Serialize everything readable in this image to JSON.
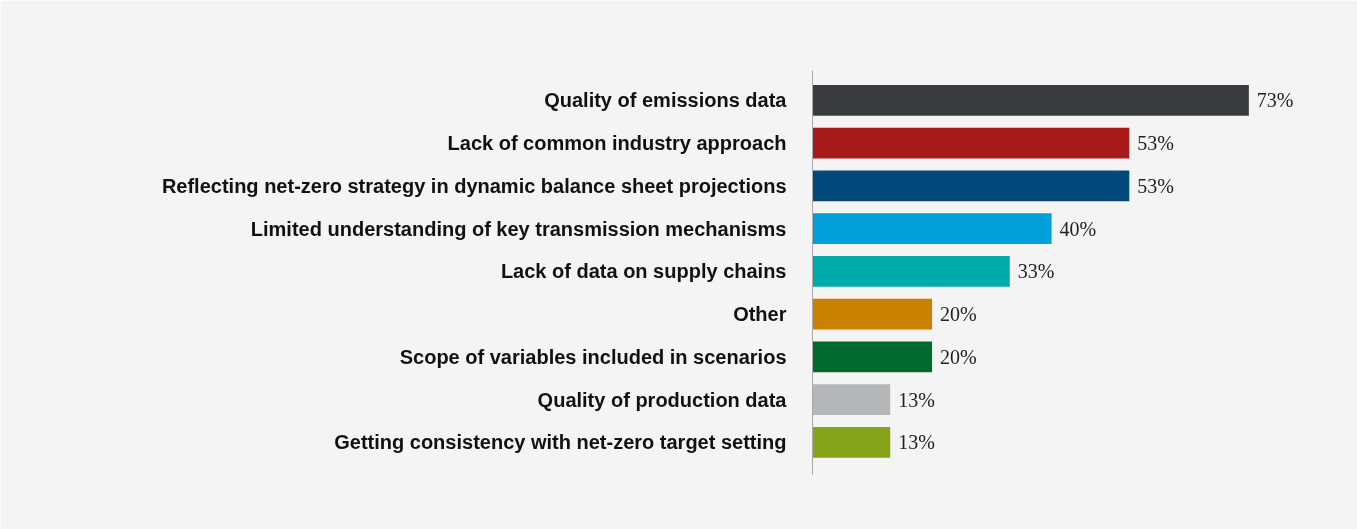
{
  "chart_data": {
    "type": "bar",
    "orientation": "horizontal",
    "categories": [
      "Quality of emissions data",
      "Lack of common industry approach",
      "Reflecting net-zero strategy in dynamic balance sheet projections",
      "Limited understanding of key transmission mechanisms",
      "Lack of data on supply chains",
      "Other",
      "Scope of variables included in scenarios",
      "Quality of production data",
      "Getting consistency with net-zero target setting"
    ],
    "values": [
      73,
      53,
      53,
      40,
      33,
      20,
      20,
      13,
      13
    ],
    "colors": [
      "#3a3b3f",
      "#a51b1a",
      "#00497a",
      "#009fda",
      "#00aaa8",
      "#c98200",
      "#006a2f",
      "#b5b6b8",
      "#86a31a"
    ],
    "value_labels": [
      "73%",
      "53%",
      "53%",
      "40%",
      "33%",
      "20%",
      "20%",
      "13%",
      "13%"
    ],
    "grid": false
  }
}
